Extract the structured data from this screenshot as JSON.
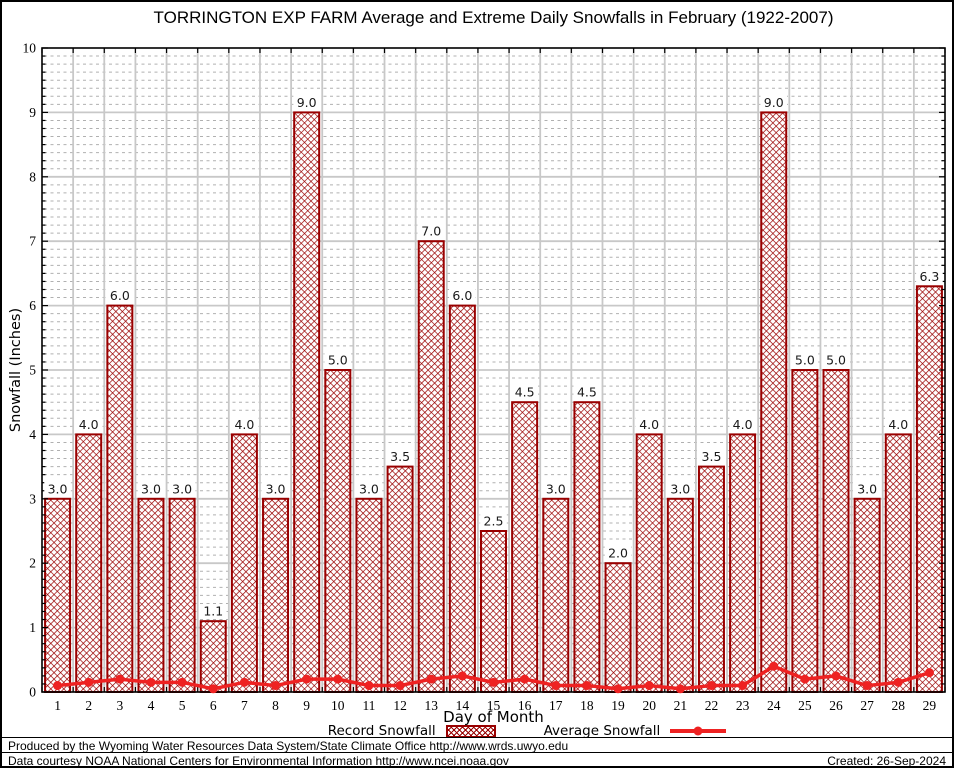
{
  "chart_data": {
    "type": "bar",
    "title": "TORRINGTON EXP FARM Average and Extreme Daily Snowfalls in February (1922-2007)",
    "xlabel": "Day of Month",
    "ylabel": "Snowfall (Inches)",
    "categories": [
      1,
      2,
      3,
      4,
      5,
      6,
      7,
      8,
      9,
      10,
      11,
      12,
      13,
      14,
      15,
      16,
      17,
      18,
      19,
      20,
      21,
      22,
      23,
      24,
      25,
      26,
      27,
      28,
      29
    ],
    "series": [
      {
        "name": "Record Snowfall",
        "type": "bar",
        "values": [
          3.0,
          4.0,
          6.0,
          3.0,
          3.0,
          1.1,
          4.0,
          3.0,
          9.0,
          5.0,
          3.0,
          3.5,
          7.0,
          6.0,
          2.5,
          4.5,
          3.0,
          4.5,
          2.0,
          4.0,
          3.0,
          3.5,
          4.0,
          9.0,
          5.0,
          5.0,
          3.0,
          4.0,
          6.3
        ]
      },
      {
        "name": "Average Snowfall",
        "type": "line",
        "values": [
          0.1,
          0.15,
          0.2,
          0.15,
          0.15,
          0.05,
          0.15,
          0.1,
          0.2,
          0.2,
          0.1,
          0.1,
          0.2,
          0.25,
          0.15,
          0.2,
          0.1,
          0.1,
          0.05,
          0.1,
          0.05,
          0.1,
          0.1,
          0.4,
          0.2,
          0.25,
          0.1,
          0.15,
          0.3
        ]
      }
    ],
    "ylim": [
      0,
      10
    ],
    "y_major_step": 1,
    "y_minor_intervals_per_unit": 8,
    "grid": true,
    "bar_value_labels": true,
    "legend_position": "bottom",
    "colors": {
      "bar_border": "#990000",
      "bar_hatch": "#990000",
      "line": "#ee2222",
      "grid_major": "#c8c8c8",
      "grid_minor": "#b0b0b0",
      "axis": "#000000",
      "bar_label_text": "#1a1a1a"
    }
  },
  "footer": {
    "line1": "Produced by the Wyoming Water Resources Data System/State Climate Office http://www.wrds.uwyo.edu",
    "line2": "Data courtesy NOAA National Centers for Environmental Information http://www.ncei.noaa.gov",
    "created": "Created: 26-Sep-2024"
  }
}
